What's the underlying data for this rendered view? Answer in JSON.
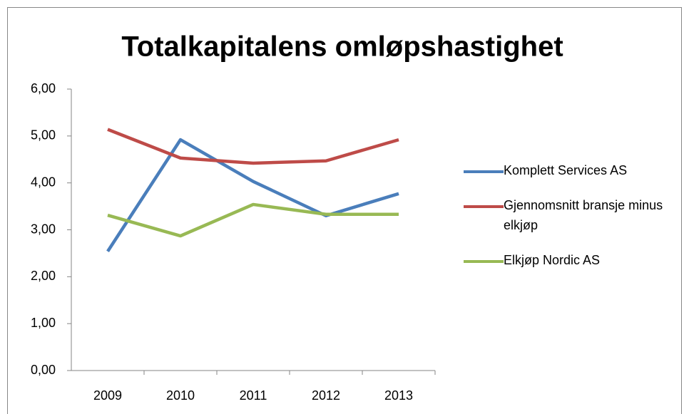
{
  "chart_data": {
    "type": "line",
    "title": "Totalkapitalens omløpshastighet",
    "categories": [
      "2009",
      "2010",
      "2011",
      "2012",
      "2013"
    ],
    "series": [
      {
        "name": "Komplett Services AS",
        "color": "#4a7ebb",
        "values": [
          2.54,
          4.92,
          4.03,
          3.3,
          3.77
        ]
      },
      {
        "name": "Gjennomsnitt bransje minus elkjøp",
        "color": "#be4b48",
        "values": [
          5.14,
          4.53,
          4.42,
          4.47,
          4.92
        ]
      },
      {
        "name": "Elkjøp Nordic AS",
        "color": "#98b954",
        "values": [
          3.31,
          2.87,
          3.54,
          3.33,
          3.33
        ]
      }
    ],
    "ylim": [
      0,
      6
    ],
    "yticks": [
      {
        "value": 0,
        "label": "0,00"
      },
      {
        "value": 1,
        "label": "1,00"
      },
      {
        "value": 2,
        "label": "2,00"
      },
      {
        "value": 3,
        "label": "3,00"
      },
      {
        "value": 4,
        "label": "4,00"
      },
      {
        "value": 5,
        "label": "5,00"
      },
      {
        "value": 6,
        "label": "6,00"
      }
    ],
    "grid": false,
    "legend": "right"
  }
}
